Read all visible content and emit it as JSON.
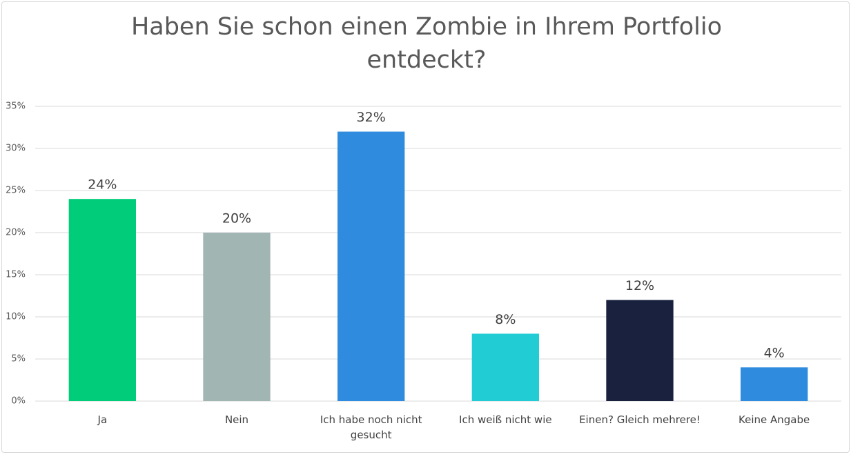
{
  "chart_data": {
    "type": "bar",
    "title": "Haben Sie schon einen Zombie in Ihrem Portfolio entdeckt?",
    "categories": [
      "Ja",
      "Nein",
      "Ich habe noch nicht gesucht",
      "Ich weiß nicht wie",
      "Einen? Gleich mehrere!",
      "Keine Angabe"
    ],
    "values": [
      24,
      20,
      32,
      8,
      12,
      4
    ],
    "value_labels": [
      "24%",
      "20%",
      "32%",
      "8%",
      "12%",
      "4%"
    ],
    "colors": [
      "#00cc7a",
      "#a1b5b2",
      "#2e8bde",
      "#22ccd4",
      "#19213e",
      "#2e8bde"
    ],
    "ylim": [
      0,
      35
    ],
    "yticks": [
      {
        "value": 0,
        "label": "0%"
      },
      {
        "value": 5,
        "label": "5%"
      },
      {
        "value": 10,
        "label": "10%"
      },
      {
        "value": 15,
        "label": "15%"
      },
      {
        "value": 20,
        "label": "20%"
      },
      {
        "value": 25,
        "label": "25%"
      },
      {
        "value": 30,
        "label": "30%"
      },
      {
        "value": 35,
        "label": "35%"
      }
    ],
    "grid": true
  }
}
